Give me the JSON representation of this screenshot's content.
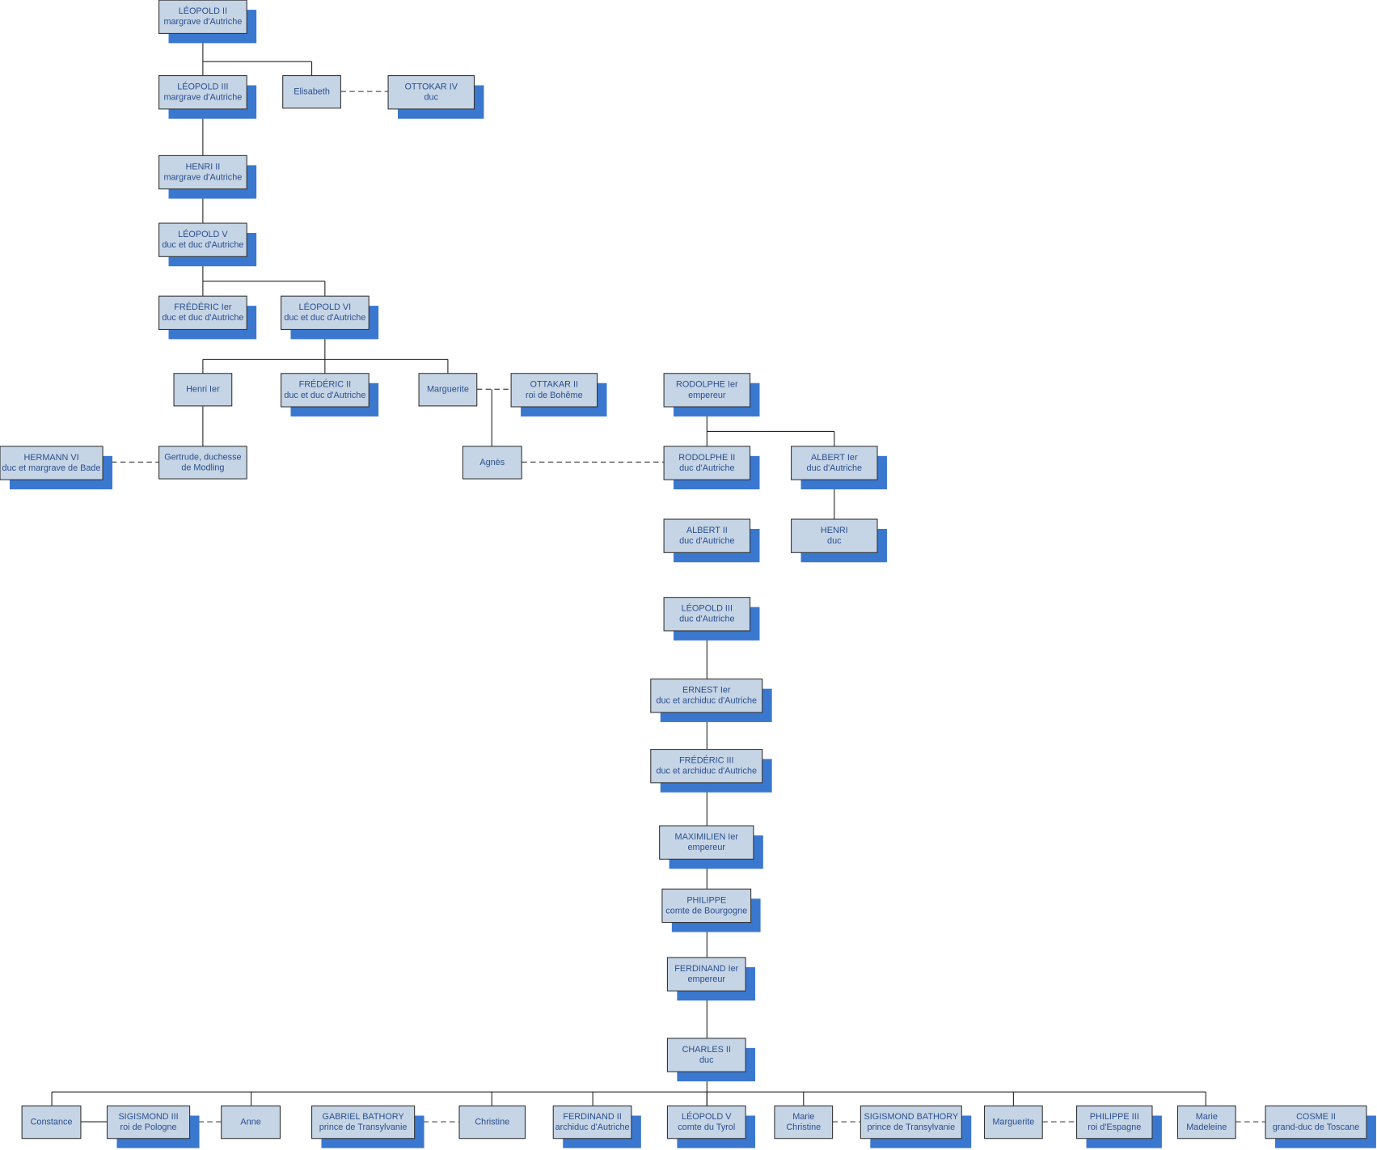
{
  "nodes": [
    {
      "lines": [
        "LÉOPOLD II",
        "margrave d'Autriche"
      ]
    },
    {
      "lines": [
        "LÉOPOLD III",
        "margrave d'Autriche"
      ]
    },
    {
      "lines": [
        "Elisabeth"
      ]
    },
    {
      "lines": [
        "OTTOKAR IV",
        "duc"
      ]
    },
    {
      "lines": [
        "HENRI II",
        "margrave d'Autriche"
      ]
    },
    {
      "lines": [
        "LÉOPOLD V",
        "duc et duc d'Autriche"
      ]
    },
    {
      "lines": [
        "FRÉDÉRIC Ier",
        "duc et duc d'Autriche"
      ]
    },
    {
      "lines": [
        "LÉOPOLD VI",
        "duc et duc d'Autriche"
      ]
    },
    {
      "lines": [
        "Henri Ier"
      ]
    },
    {
      "lines": [
        "FRÉDÉRIC II",
        "duc et duc d'Autriche"
      ]
    },
    {
      "lines": [
        "Marguerite"
      ]
    },
    {
      "lines": [
        "OTTAKAR II",
        "roi de Bohême"
      ]
    },
    {
      "lines": [
        "RODOLPHE Ier",
        "empereur"
      ]
    },
    {
      "lines": [
        "HERMANN VI",
        "duc et margrave de Bade"
      ]
    },
    {
      "lines": [
        "Gertrude, duchesse",
        "de Modling"
      ]
    },
    {
      "lines": [
        "Agnès"
      ]
    },
    {
      "lines": [
        "RODOLPHE II",
        "duc d'Autriche"
      ]
    },
    {
      "lines": [
        "ALBERT Ier",
        "duc d'Autriche"
      ]
    },
    {
      "lines": [
        "ALBERT II",
        "duc d'Autriche"
      ]
    },
    {
      "lines": [
        "HENRI",
        "duc"
      ]
    },
    {
      "lines": [
        "LÉOPOLD III",
        "duc d'Autriche"
      ]
    },
    {
      "lines": [
        "ERNEST Ier",
        "duc et archiduc d'Autriche"
      ]
    },
    {
      "lines": [
        "FRÉDÉRIC III",
        "duc et archiduc d'Autriche"
      ]
    },
    {
      "lines": [
        "MAXIMILIEN Ier",
        "empereur"
      ]
    },
    {
      "lines": [
        "PHILIPPE",
        "comte de Bourgogne"
      ]
    },
    {
      "lines": [
        "FERDINAND Ier",
        "empereur"
      ]
    },
    {
      "lines": [
        "CHARLES II",
        "duc"
      ]
    },
    {
      "lines": [
        "Constance"
      ]
    },
    {
      "lines": [
        "SIGISMOND III",
        "roi de Pologne"
      ]
    },
    {
      "lines": [
        "Anne"
      ]
    },
    {
      "lines": [
        "GABRIEL BATHORY",
        "prince de Transylvanie"
      ]
    },
    {
      "lines": [
        "Christine"
      ]
    },
    {
      "lines": [
        "FERDINAND II",
        "archiduc d'Autriche"
      ]
    },
    {
      "lines": [
        "LÉOPOLD V",
        "comte du Tyrol"
      ]
    },
    {
      "lines": [
        "Marie",
        "Christine"
      ]
    },
    {
      "lines": [
        "SIGISMOND BATHORY",
        "prince de Transylvanie"
      ]
    },
    {
      "lines": [
        "Marguerite"
      ]
    },
    {
      "lines": [
        "PHILIPPE III",
        "roi d'Espagne"
      ]
    },
    {
      "lines": [
        "Marie",
        "Madeleine"
      ]
    },
    {
      "lines": [
        "COSME II",
        "grand-duc de Toscane"
      ]
    }
  ]
}
